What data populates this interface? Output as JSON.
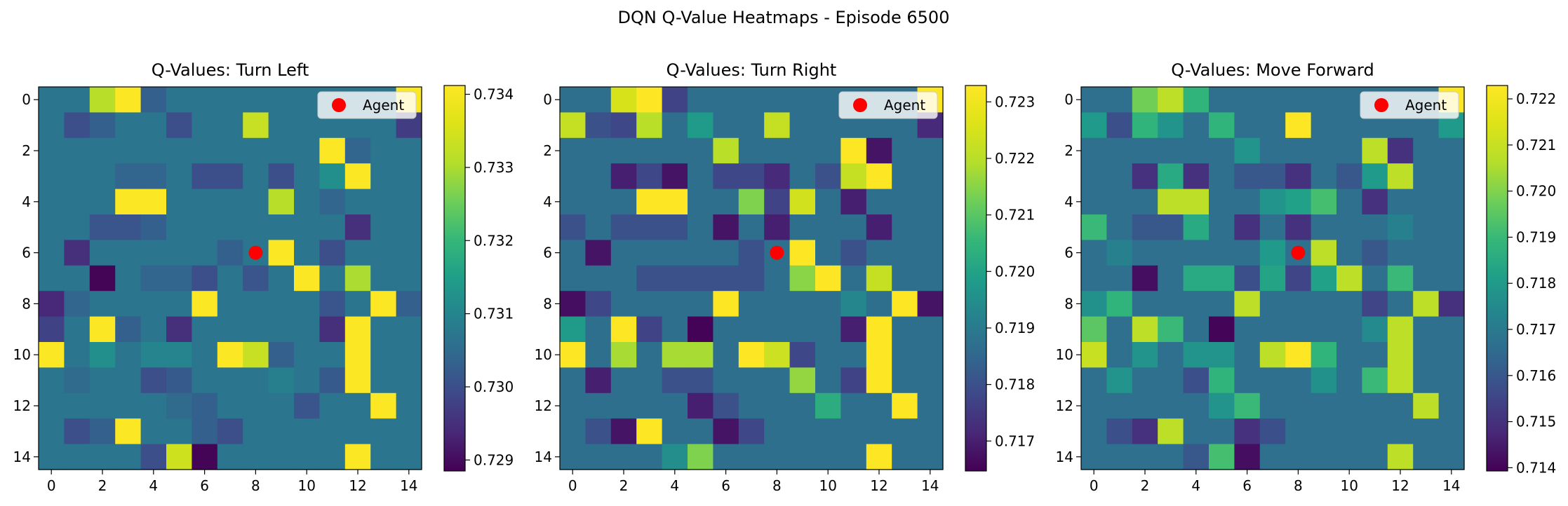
{
  "suptitle": "DQN Q-Value Heatmaps - Episode 6500",
  "chart_data": [
    {
      "type": "heatmap",
      "title": "Q-Values: Turn Left",
      "grid_size": 15,
      "xticks": [
        0,
        2,
        4,
        6,
        8,
        10,
        12,
        14
      ],
      "yticks": [
        0,
        2,
        4,
        6,
        8,
        10,
        12,
        14
      ],
      "colorbar": {
        "min": 0.72885,
        "max": 0.73412,
        "ticks": [
          "0.729",
          "0.730",
          "0.731",
          "0.732",
          "0.733",
          "0.734"
        ]
      },
      "agent": {
        "x": 8,
        "y": 6,
        "label": "Agent",
        "color": "#ff0000"
      },
      "base": 0.7307,
      "cells": [
        [
          0,
          2,
          0.7331
        ],
        [
          0,
          3,
          0.7341
        ],
        [
          0,
          4,
          0.7303
        ],
        [
          0,
          14,
          0.7341
        ],
        [
          1,
          1,
          0.73
        ],
        [
          1,
          2,
          0.7303
        ],
        [
          1,
          5,
          0.73
        ],
        [
          1,
          8,
          0.7333
        ],
        [
          1,
          14,
          0.7297
        ],
        [
          2,
          11,
          0.7341
        ],
        [
          2,
          12,
          0.7304
        ],
        [
          3,
          3,
          0.7304
        ],
        [
          3,
          4,
          0.7304
        ],
        [
          3,
          6,
          0.73
        ],
        [
          3,
          7,
          0.73
        ],
        [
          3,
          9,
          0.73
        ],
        [
          3,
          11,
          0.7312
        ],
        [
          3,
          12,
          0.7341
        ],
        [
          4,
          3,
          0.7341
        ],
        [
          4,
          4,
          0.7341
        ],
        [
          4,
          9,
          0.7331
        ],
        [
          4,
          11,
          0.7304
        ],
        [
          5,
          2,
          0.7301
        ],
        [
          5,
          3,
          0.7301
        ],
        [
          5,
          4,
          0.7303
        ],
        [
          5,
          12,
          0.7295
        ],
        [
          6,
          1,
          0.7295
        ],
        [
          6,
          7,
          0.7303
        ],
        [
          6,
          9,
          0.7341
        ],
        [
          6,
          11,
          0.73
        ],
        [
          7,
          2,
          0.7289
        ],
        [
          7,
          4,
          0.7304
        ],
        [
          7,
          5,
          0.7304
        ],
        [
          7,
          6,
          0.73
        ],
        [
          7,
          8,
          0.7301
        ],
        [
          7,
          10,
          0.7341
        ],
        [
          7,
          12,
          0.733
        ],
        [
          8,
          0,
          0.7294
        ],
        [
          8,
          1,
          0.7304
        ],
        [
          8,
          6,
          0.7341
        ],
        [
          8,
          11,
          0.7301
        ],
        [
          8,
          13,
          0.7341
        ],
        [
          8,
          14,
          0.7303
        ],
        [
          9,
          0,
          0.7298
        ],
        [
          9,
          2,
          0.7341
        ],
        [
          9,
          3,
          0.7303
        ],
        [
          9,
          5,
          0.7295
        ],
        [
          9,
          11,
          0.7295
        ],
        [
          9,
          12,
          0.7341
        ],
        [
          10,
          0,
          0.7341
        ],
        [
          10,
          2,
          0.7312
        ],
        [
          10,
          4,
          0.731
        ],
        [
          10,
          5,
          0.731
        ],
        [
          10,
          7,
          0.7341
        ],
        [
          10,
          8,
          0.7333
        ],
        [
          10,
          9,
          0.7303
        ],
        [
          10,
          12,
          0.7341
        ],
        [
          11,
          1,
          0.7305
        ],
        [
          11,
          4,
          0.73
        ],
        [
          11,
          5,
          0.7302
        ],
        [
          11,
          9,
          0.7309
        ],
        [
          11,
          11,
          0.7302
        ],
        [
          11,
          12,
          0.7341
        ],
        [
          12,
          5,
          0.7305
        ],
        [
          12,
          6,
          0.7303
        ],
        [
          12,
          10,
          0.7301
        ],
        [
          12,
          13,
          0.7341
        ],
        [
          13,
          1,
          0.73
        ],
        [
          13,
          2,
          0.7303
        ],
        [
          13,
          3,
          0.7341
        ],
        [
          13,
          6,
          0.7303
        ],
        [
          13,
          7,
          0.73
        ],
        [
          14,
          4,
          0.73
        ],
        [
          14,
          5,
          0.7334
        ],
        [
          14,
          6,
          0.7289
        ],
        [
          14,
          12,
          0.7341
        ]
      ]
    },
    {
      "type": "heatmap",
      "title": "Q-Values: Turn Right",
      "grid_size": 15,
      "xticks": [
        0,
        2,
        4,
        6,
        8,
        10,
        12,
        14
      ],
      "yticks": [
        0,
        2,
        4,
        6,
        8,
        10,
        12,
        14
      ],
      "colorbar": {
        "min": 0.71647,
        "max": 0.72329,
        "ticks": [
          "0.717",
          "0.718",
          "0.719",
          "0.720",
          "0.721",
          "0.722",
          "0.723"
        ]
      },
      "agent": {
        "x": 8,
        "y": 6,
        "label": "Agent",
        "color": "#ff0000"
      },
      "base": 0.7187,
      "cells": [
        [
          0,
          2,
          0.7225
        ],
        [
          0,
          3,
          0.7233
        ],
        [
          0,
          4,
          0.7177
        ],
        [
          0,
          14,
          0.7233
        ],
        [
          1,
          0,
          0.7222
        ],
        [
          1,
          1,
          0.718
        ],
        [
          1,
          2,
          0.7178
        ],
        [
          1,
          3,
          0.722
        ],
        [
          1,
          5,
          0.7198
        ],
        [
          1,
          8,
          0.7222
        ],
        [
          1,
          14,
          0.7172
        ],
        [
          2,
          6,
          0.722
        ],
        [
          2,
          11,
          0.7233
        ],
        [
          2,
          12,
          0.7168
        ],
        [
          3,
          2,
          0.717
        ],
        [
          3,
          3,
          0.7178
        ],
        [
          3,
          4,
          0.7168
        ],
        [
          3,
          6,
          0.7178
        ],
        [
          3,
          7,
          0.7178
        ],
        [
          3,
          8,
          0.7172
        ],
        [
          3,
          10,
          0.718
        ],
        [
          3,
          11,
          0.7222
        ],
        [
          3,
          12,
          0.7233
        ],
        [
          4,
          3,
          0.7233
        ],
        [
          4,
          4,
          0.7233
        ],
        [
          4,
          7,
          0.7214
        ],
        [
          4,
          8,
          0.7177
        ],
        [
          4,
          9,
          0.7224
        ],
        [
          4,
          11,
          0.717
        ],
        [
          5,
          0,
          0.718
        ],
        [
          5,
          2,
          0.718
        ],
        [
          5,
          3,
          0.718
        ],
        [
          5,
          4,
          0.718
        ],
        [
          5,
          6,
          0.7168
        ],
        [
          5,
          8,
          0.717
        ],
        [
          5,
          12,
          0.717
        ],
        [
          6,
          1,
          0.7168
        ],
        [
          6,
          7,
          0.718
        ],
        [
          6,
          9,
          0.7233
        ],
        [
          6,
          11,
          0.718
        ],
        [
          7,
          3,
          0.718
        ],
        [
          7,
          4,
          0.718
        ],
        [
          7,
          5,
          0.718
        ],
        [
          7,
          6,
          0.718
        ],
        [
          7,
          7,
          0.718
        ],
        [
          7,
          9,
          0.7215
        ],
        [
          7,
          10,
          0.7233
        ],
        [
          7,
          12,
          0.7222
        ],
        [
          8,
          0,
          0.7167
        ],
        [
          8,
          1,
          0.7178
        ],
        [
          8,
          6,
          0.7233
        ],
        [
          8,
          11,
          0.7193
        ],
        [
          8,
          13,
          0.7233
        ],
        [
          8,
          14,
          0.7168
        ],
        [
          9,
          0,
          0.7198
        ],
        [
          9,
          2,
          0.7233
        ],
        [
          9,
          3,
          0.7177
        ],
        [
          9,
          5,
          0.7165
        ],
        [
          9,
          11,
          0.717
        ],
        [
          9,
          12,
          0.7233
        ],
        [
          10,
          0,
          0.7233
        ],
        [
          10,
          2,
          0.7218
        ],
        [
          10,
          4,
          0.7218
        ],
        [
          10,
          5,
          0.7218
        ],
        [
          10,
          7,
          0.7233
        ],
        [
          10,
          8,
          0.7223
        ],
        [
          10,
          9,
          0.7178
        ],
        [
          10,
          12,
          0.7233
        ],
        [
          11,
          1,
          0.717
        ],
        [
          11,
          4,
          0.718
        ],
        [
          11,
          5,
          0.718
        ],
        [
          11,
          9,
          0.7216
        ],
        [
          11,
          11,
          0.7177
        ],
        [
          11,
          12,
          0.7233
        ],
        [
          12,
          5,
          0.717
        ],
        [
          12,
          6,
          0.718
        ],
        [
          12,
          10,
          0.7203
        ],
        [
          12,
          13,
          0.7233
        ],
        [
          13,
          1,
          0.718
        ],
        [
          13,
          2,
          0.7168
        ],
        [
          13,
          3,
          0.7233
        ],
        [
          13,
          6,
          0.7168
        ],
        [
          13,
          7,
          0.7178
        ],
        [
          14,
          4,
          0.7195
        ],
        [
          14,
          5,
          0.7214
        ],
        [
          14,
          12,
          0.7233
        ]
      ]
    },
    {
      "type": "heatmap",
      "title": "Q-Values: Move Forward",
      "grid_size": 15,
      "xticks": [
        0,
        2,
        4,
        6,
        8,
        10,
        12,
        14
      ],
      "yticks": [
        0,
        2,
        4,
        6,
        8,
        10,
        12,
        14
      ],
      "colorbar": {
        "min": 0.71393,
        "max": 0.72229,
        "ticks": [
          "0.714",
          "0.715",
          "0.716",
          "0.717",
          "0.718",
          "0.719",
          "0.720",
          "0.721",
          "0.722"
        ]
      },
      "agent": {
        "x": 8,
        "y": 6,
        "label": "Agent",
        "color": "#ff0000"
      },
      "base": 0.7167,
      "cells": [
        [
          0,
          2,
          0.7198
        ],
        [
          0,
          3,
          0.7208
        ],
        [
          0,
          4,
          0.7188
        ],
        [
          0,
          14,
          0.7223
        ],
        [
          1,
          0,
          0.718
        ],
        [
          1,
          1,
          0.7158
        ],
        [
          1,
          2,
          0.7188
        ],
        [
          1,
          3,
          0.7178
        ],
        [
          1,
          5,
          0.7188
        ],
        [
          1,
          8,
          0.7223
        ],
        [
          1,
          14,
          0.718
        ],
        [
          2,
          6,
          0.7178
        ],
        [
          2,
          11,
          0.7208
        ],
        [
          2,
          12,
          0.715
        ],
        [
          3,
          2,
          0.715
        ],
        [
          3,
          3,
          0.7185
        ],
        [
          3,
          4,
          0.715
        ],
        [
          3,
          6,
          0.716
        ],
        [
          3,
          7,
          0.716
        ],
        [
          3,
          8,
          0.715
        ],
        [
          3,
          10,
          0.716
        ],
        [
          3,
          11,
          0.718
        ],
        [
          3,
          12,
          0.7208
        ],
        [
          4,
          3,
          0.7208
        ],
        [
          4,
          4,
          0.7208
        ],
        [
          4,
          7,
          0.7178
        ],
        [
          4,
          8,
          0.7182
        ],
        [
          4,
          9,
          0.7192
        ],
        [
          4,
          11,
          0.715
        ],
        [
          5,
          0,
          0.719
        ],
        [
          5,
          2,
          0.716
        ],
        [
          5,
          3,
          0.716
        ],
        [
          5,
          4,
          0.7185
        ],
        [
          5,
          6,
          0.715
        ],
        [
          5,
          8,
          0.715
        ],
        [
          5,
          12,
          0.7172
        ],
        [
          6,
          1,
          0.7172
        ],
        [
          6,
          7,
          0.718
        ],
        [
          6,
          9,
          0.7208
        ],
        [
          6,
          11,
          0.716
        ],
        [
          7,
          2,
          0.7142
        ],
        [
          7,
          4,
          0.7185
        ],
        [
          7,
          5,
          0.7185
        ],
        [
          7,
          6,
          0.7158
        ],
        [
          7,
          7,
          0.7183
        ],
        [
          7,
          8,
          0.7155
        ],
        [
          7,
          9,
          0.7182
        ],
        [
          7,
          10,
          0.7208
        ],
        [
          7,
          12,
          0.719
        ],
        [
          8,
          0,
          0.7177
        ],
        [
          8,
          1,
          0.7188
        ],
        [
          8,
          6,
          0.7208
        ],
        [
          8,
          11,
          0.7155
        ],
        [
          8,
          13,
          0.7208
        ],
        [
          8,
          14,
          0.715
        ],
        [
          9,
          0,
          0.7195
        ],
        [
          9,
          2,
          0.7208
        ],
        [
          9,
          3,
          0.719
        ],
        [
          9,
          5,
          0.714
        ],
        [
          9,
          11,
          0.7175
        ],
        [
          9,
          12,
          0.7208
        ],
        [
          10,
          0,
          0.721
        ],
        [
          10,
          2,
          0.7178
        ],
        [
          10,
          4,
          0.7178
        ],
        [
          10,
          5,
          0.7178
        ],
        [
          10,
          7,
          0.7208
        ],
        [
          10,
          8,
          0.7223
        ],
        [
          10,
          9,
          0.7188
        ],
        [
          10,
          12,
          0.7208
        ],
        [
          11,
          1,
          0.7178
        ],
        [
          11,
          4,
          0.7158
        ],
        [
          11,
          5,
          0.7188
        ],
        [
          11,
          9,
          0.7177
        ],
        [
          11,
          11,
          0.719
        ],
        [
          11,
          12,
          0.7208
        ],
        [
          12,
          5,
          0.7178
        ],
        [
          12,
          6,
          0.719
        ],
        [
          12,
          13,
          0.7208
        ],
        [
          13,
          1,
          0.7158
        ],
        [
          13,
          2,
          0.715
        ],
        [
          13,
          3,
          0.7208
        ],
        [
          13,
          6,
          0.715
        ],
        [
          13,
          7,
          0.7158
        ],
        [
          14,
          4,
          0.716
        ],
        [
          14,
          5,
          0.7192
        ],
        [
          14,
          6,
          0.7142
        ],
        [
          14,
          12,
          0.7208
        ]
      ]
    }
  ]
}
